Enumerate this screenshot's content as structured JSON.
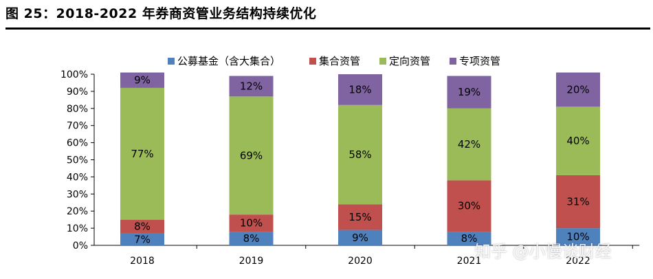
{
  "header": {
    "title": "图 25：2018-2022 年券商资管业务结构持续优化"
  },
  "watermark": "知乎 @小慢谈财经",
  "chart_data": {
    "type": "bar",
    "stacked": true,
    "title": "",
    "xlabel": "",
    "ylabel": "",
    "ylim": [
      0,
      100
    ],
    "y_ticks": [
      "0%",
      "10%",
      "20%",
      "30%",
      "40%",
      "50%",
      "60%",
      "70%",
      "80%",
      "90%",
      "100%"
    ],
    "categories": [
      "2018",
      "2019",
      "2020",
      "2021",
      "2022"
    ],
    "legend_position": "top",
    "grid": false,
    "series": [
      {
        "name": "公募基金（含大集合）",
        "color": "#4F81BD",
        "values": [
          7,
          8,
          9,
          8,
          10
        ],
        "labels": [
          "7%",
          "8%",
          "9%",
          "8%",
          "10%"
        ]
      },
      {
        "name": "集合资管",
        "color": "#C0504D",
        "values": [
          8,
          10,
          15,
          30,
          31
        ],
        "labels": [
          "8%",
          "10%",
          "15%",
          "30%",
          "31%"
        ]
      },
      {
        "name": "定向资管",
        "color": "#9BBB59",
        "values": [
          77,
          69,
          58,
          42,
          40
        ],
        "labels": [
          "77%",
          "69%",
          "58%",
          "42%",
          "40%"
        ]
      },
      {
        "name": "专项资管",
        "color": "#8064A2",
        "values": [
          9,
          12,
          18,
          19,
          20
        ],
        "labels": [
          "9%",
          "12%",
          "18%",
          "19%",
          "20%"
        ]
      }
    ]
  }
}
